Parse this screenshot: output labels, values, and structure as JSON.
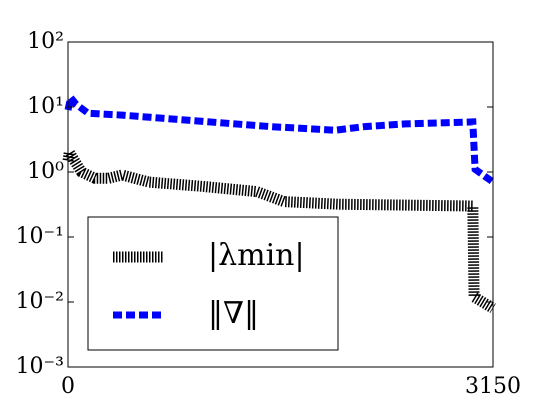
{
  "chart_data": {
    "type": "line",
    "xlim": [
      0,
      3150
    ],
    "xticks": [
      0,
      3150
    ],
    "ylim": [
      0.001,
      100
    ],
    "log_y": true,
    "yticks": [
      {
        "value": 0.001,
        "label": "10⁻³"
      },
      {
        "value": 0.01,
        "label": "10⁻²"
      },
      {
        "value": 0.1,
        "label": "10⁻¹"
      },
      {
        "value": 1,
        "label": "10⁰"
      },
      {
        "value": 10,
        "label": "10¹"
      },
      {
        "value": 100,
        "label": "10²"
      }
    ],
    "legend_position": "lower left",
    "series": [
      {
        "name": "|λmin|",
        "color": "#000000",
        "x": [
          0,
          10,
          100,
          200,
          300,
          400,
          600,
          1000,
          1400,
          1600,
          2000,
          2500,
          3000,
          3010,
          3150
        ],
        "values": [
          1.5,
          2.0,
          1.0,
          0.8,
          0.8,
          0.9,
          0.7,
          0.6,
          0.5,
          0.35,
          0.32,
          0.31,
          0.3,
          0.012,
          0.008
        ]
      },
      {
        "name": "‖∇‖",
        "color": "#0000ff",
        "x": [
          0,
          20,
          60,
          150,
          400,
          1000,
          1500,
          1980,
          2200,
          2500,
          3000,
          3017,
          3150
        ],
        "values": [
          9,
          14,
          11,
          8,
          7.5,
          6,
          5,
          4.4,
          5,
          5.5,
          5.9,
          1.1,
          0.7
        ]
      }
    ]
  }
}
